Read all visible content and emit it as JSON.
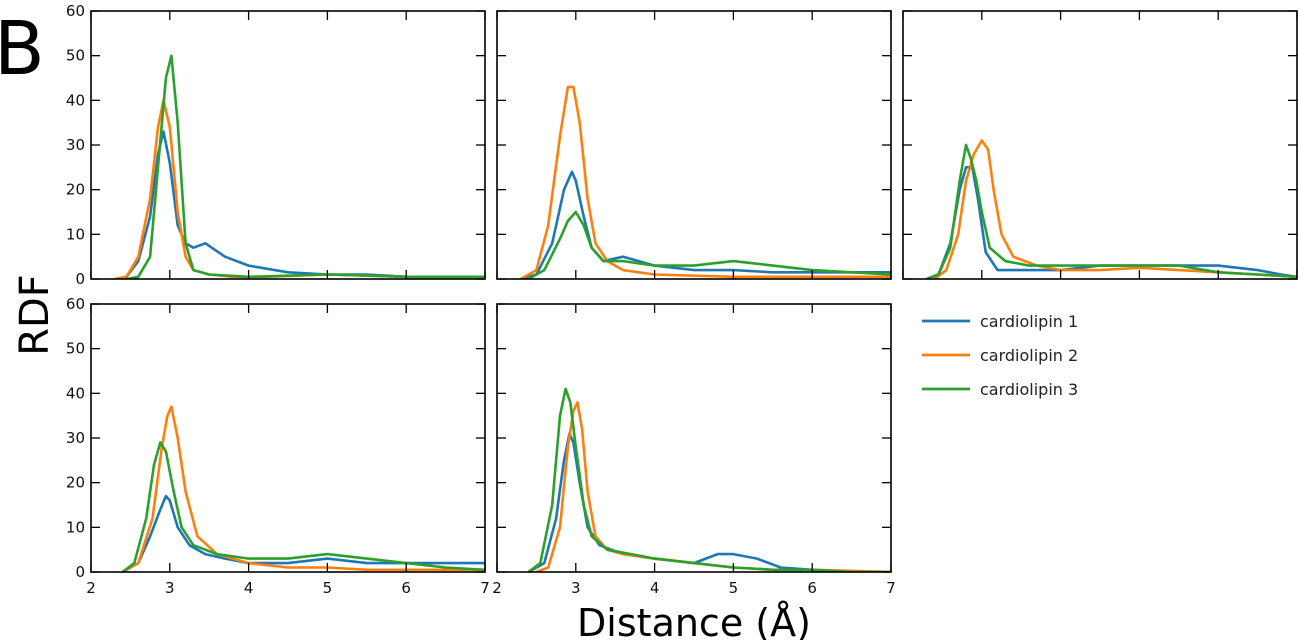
{
  "figure": {
    "panel_letter": "B",
    "ylabel": "RDF",
    "xlabel": "Distance (Å)"
  },
  "legend": [
    {
      "label": "cardiolipin 1",
      "color": "#1f77b4"
    },
    {
      "label": "cardiolipin 2",
      "color": "#ff7f0e"
    },
    {
      "label": "cardiolipin 3",
      "color": "#2ca02c"
    }
  ],
  "chart_data": [
    {
      "type": "line",
      "panel": "top-left",
      "xlim": [
        2,
        7
      ],
      "ylim": [
        0,
        60
      ],
      "x_ticks": [
        2,
        3,
        4,
        5,
        6,
        7
      ],
      "y_ticks": [
        0,
        10,
        20,
        30,
        40,
        50,
        60
      ],
      "series": [
        {
          "name": "cardiolipin 1",
          "color": "#1f77b4",
          "x": [
            2.3,
            2.45,
            2.6,
            2.75,
            2.85,
            2.92,
            3.0,
            3.1,
            3.2,
            3.3,
            3.45,
            3.7,
            4.0,
            4.5,
            5.0,
            5.5,
            6.0,
            6.5,
            7.0
          ],
          "y": [
            0,
            0.5,
            4,
            14,
            28,
            33,
            26,
            12,
            8,
            7,
            8,
            5,
            3,
            1.5,
            1,
            1,
            0.5,
            0.5,
            0.5
          ]
        },
        {
          "name": "cardiolipin 2",
          "color": "#ff7f0e",
          "x": [
            2.3,
            2.45,
            2.6,
            2.75,
            2.85,
            2.92,
            3.0,
            3.1,
            3.2,
            3.3,
            3.5,
            3.8,
            4.2,
            5.0,
            6.0,
            7.0
          ],
          "y": [
            0,
            0.5,
            5,
            18,
            34,
            40,
            34,
            15,
            5,
            2,
            1,
            0.5,
            0.5,
            1,
            0.5,
            0.5
          ]
        },
        {
          "name": "cardiolipin 3",
          "color": "#2ca02c",
          "x": [
            2.45,
            2.6,
            2.75,
            2.85,
            2.95,
            3.02,
            3.1,
            3.2,
            3.3,
            3.5,
            4.0,
            5.0,
            6.0,
            7.0
          ],
          "y": [
            0,
            0.5,
            5,
            25,
            45,
            50,
            35,
            8,
            2,
            1,
            0.5,
            1,
            0.5,
            0.5
          ]
        }
      ]
    },
    {
      "type": "line",
      "panel": "top-middle",
      "xlim": [
        2,
        7
      ],
      "ylim": [
        0,
        60
      ],
      "x_ticks": [
        2,
        3,
        4,
        5,
        6,
        7
      ],
      "y_ticks": [
        0,
        10,
        20,
        30,
        40,
        50,
        60
      ],
      "series": [
        {
          "name": "cardiolipin 1",
          "color": "#1f77b4",
          "x": [
            2.3,
            2.5,
            2.7,
            2.85,
            2.95,
            3.0,
            3.1,
            3.2,
            3.35,
            3.6,
            4.0,
            4.5,
            5.0,
            5.5,
            6.0,
            6.5,
            7.0
          ],
          "y": [
            0,
            1,
            8,
            20,
            24,
            22,
            14,
            7,
            4,
            5,
            3,
            2,
            2,
            1.5,
            1.5,
            1.5,
            1.5
          ]
        },
        {
          "name": "cardiolipin 2",
          "color": "#ff7f0e",
          "x": [
            2.3,
            2.5,
            2.65,
            2.8,
            2.9,
            2.97,
            3.05,
            3.15,
            3.25,
            3.4,
            3.6,
            4.0,
            5.0,
            6.0,
            7.0
          ],
          "y": [
            0,
            2,
            12,
            32,
            43,
            43,
            35,
            18,
            8,
            4,
            2,
            1,
            0.5,
            0.5,
            0.5
          ]
        },
        {
          "name": "cardiolipin 3",
          "color": "#2ca02c",
          "x": [
            2.4,
            2.6,
            2.8,
            2.9,
            3.0,
            3.1,
            3.2,
            3.35,
            3.6,
            4.0,
            4.5,
            5.0,
            5.5,
            6.0,
            6.5,
            7.0
          ],
          "y": [
            0,
            2,
            9,
            13,
            15,
            12,
            7,
            4,
            4,
            3,
            3,
            4,
            3,
            2,
            1.5,
            1
          ]
        }
      ]
    },
    {
      "type": "line",
      "panel": "top-right",
      "xlim": [
        2,
        7
      ],
      "ylim": [
        0,
        60
      ],
      "x_ticks": [
        2,
        3,
        4,
        5,
        6,
        7
      ],
      "y_ticks": [
        0,
        10,
        20,
        30,
        40,
        50,
        60
      ],
      "series": [
        {
          "name": "cardiolipin 1",
          "color": "#1f77b4",
          "x": [
            2.3,
            2.45,
            2.6,
            2.72,
            2.8,
            2.88,
            2.95,
            3.05,
            3.2,
            3.5,
            4.0,
            4.5,
            5.0,
            5.5,
            6.0,
            6.5,
            6.8,
            7.0
          ],
          "y": [
            0,
            1,
            8,
            20,
            25,
            25,
            18,
            6,
            2,
            2,
            2,
            3,
            3,
            3,
            3,
            2,
            1,
            0.5
          ]
        },
        {
          "name": "cardiolipin 2",
          "color": "#ff7f0e",
          "x": [
            2.4,
            2.55,
            2.7,
            2.8,
            2.9,
            3.0,
            3.08,
            3.15,
            3.25,
            3.4,
            3.7,
            4.0,
            4.5,
            5.0,
            5.5,
            6.0,
            6.5,
            7.0
          ],
          "y": [
            0,
            2,
            10,
            22,
            28,
            31,
            29,
            20,
            10,
            5,
            3,
            2,
            2,
            2.5,
            2,
            1.5,
            1,
            0.5
          ]
        },
        {
          "name": "cardiolipin 3",
          "color": "#2ca02c",
          "x": [
            2.3,
            2.45,
            2.6,
            2.72,
            2.8,
            2.86,
            2.93,
            3.0,
            3.1,
            3.3,
            3.6,
            4.0,
            4.5,
            5.0,
            5.5,
            6.0,
            6.5,
            7.0
          ],
          "y": [
            0,
            1,
            7,
            22,
            30,
            27,
            22,
            15,
            7,
            4,
            3,
            3,
            3,
            3,
            3,
            1.5,
            1,
            0.5
          ]
        }
      ]
    },
    {
      "type": "line",
      "panel": "bottom-left",
      "xlim": [
        2,
        7
      ],
      "ylim": [
        0,
        60
      ],
      "x_ticks": [
        2,
        3,
        4,
        5,
        6,
        7
      ],
      "y_ticks": [
        0,
        10,
        20,
        30,
        40,
        50,
        60
      ],
      "series": [
        {
          "name": "cardiolipin 1",
          "color": "#1f77b4",
          "x": [
            2.4,
            2.6,
            2.75,
            2.88,
            2.95,
            3.0,
            3.1,
            3.25,
            3.45,
            3.7,
            4.0,
            4.5,
            5.0,
            5.5,
            6.0,
            6.5,
            7.0
          ],
          "y": [
            0,
            2,
            8,
            14,
            17,
            16,
            10,
            6,
            4,
            3,
            2,
            2,
            3,
            2,
            2,
            2,
            2
          ]
        },
        {
          "name": "cardiolipin 2",
          "color": "#ff7f0e",
          "x": [
            2.4,
            2.6,
            2.78,
            2.9,
            2.97,
            3.02,
            3.1,
            3.2,
            3.35,
            3.6,
            4.0,
            4.5,
            5.0,
            5.5,
            6.0,
            6.5,
            7.0
          ],
          "y": [
            0,
            2,
            12,
            28,
            35,
            37,
            30,
            18,
            8,
            4,
            2,
            1,
            1,
            0.5,
            0.5,
            0.5,
            0.5
          ]
        },
        {
          "name": "cardiolipin 3",
          "color": "#2ca02c",
          "x": [
            2.4,
            2.55,
            2.7,
            2.8,
            2.88,
            2.95,
            3.05,
            3.15,
            3.3,
            3.6,
            4.0,
            4.5,
            5.0,
            5.5,
            6.0,
            6.5,
            7.0
          ],
          "y": [
            0,
            2,
            12,
            24,
            29,
            27,
            18,
            10,
            6,
            4,
            3,
            3,
            4,
            3,
            2,
            1,
            0.5
          ]
        }
      ]
    },
    {
      "type": "line",
      "panel": "bottom-middle",
      "xlim": [
        2,
        7
      ],
      "ylim": [
        0,
        60
      ],
      "x_ticks": [
        2,
        3,
        4,
        5,
        6,
        7
      ],
      "y_ticks": [
        0,
        10,
        20,
        30,
        40,
        50,
        60
      ],
      "series": [
        {
          "name": "cardiolipin 1",
          "color": "#1f77b4",
          "x": [
            2.4,
            2.6,
            2.75,
            2.85,
            2.92,
            2.97,
            3.05,
            3.15,
            3.3,
            3.6,
            4.0,
            4.5,
            4.8,
            5.0,
            5.3,
            5.6,
            6.0,
            6.5,
            7.0
          ],
          "y": [
            0,
            2,
            12,
            25,
            31,
            29,
            20,
            10,
            6,
            4,
            3,
            2,
            4,
            4,
            3,
            1,
            0.5,
            0,
            0
          ]
        },
        {
          "name": "cardiolipin 2",
          "color": "#ff7f0e",
          "x": [
            2.5,
            2.65,
            2.8,
            2.9,
            2.97,
            3.02,
            3.08,
            3.15,
            3.25,
            3.4,
            3.6,
            4.0,
            4.5,
            5.0,
            5.5,
            6.0,
            7.0
          ],
          "y": [
            0,
            1,
            10,
            28,
            36,
            38,
            32,
            18,
            8,
            5,
            4,
            3,
            2,
            1,
            0.5,
            0.5,
            0
          ]
        },
        {
          "name": "cardiolipin 3",
          "color": "#2ca02c",
          "x": [
            2.4,
            2.55,
            2.7,
            2.8,
            2.87,
            2.93,
            3.0,
            3.1,
            3.2,
            3.4,
            3.7,
            4.0,
            4.5,
            5.0,
            5.5,
            6.0,
            6.5,
            7.0
          ],
          "y": [
            0,
            2,
            15,
            35,
            41,
            38,
            28,
            15,
            8,
            5,
            4,
            3,
            2,
            1,
            0.5,
            0.5,
            0,
            0
          ]
        }
      ]
    }
  ]
}
